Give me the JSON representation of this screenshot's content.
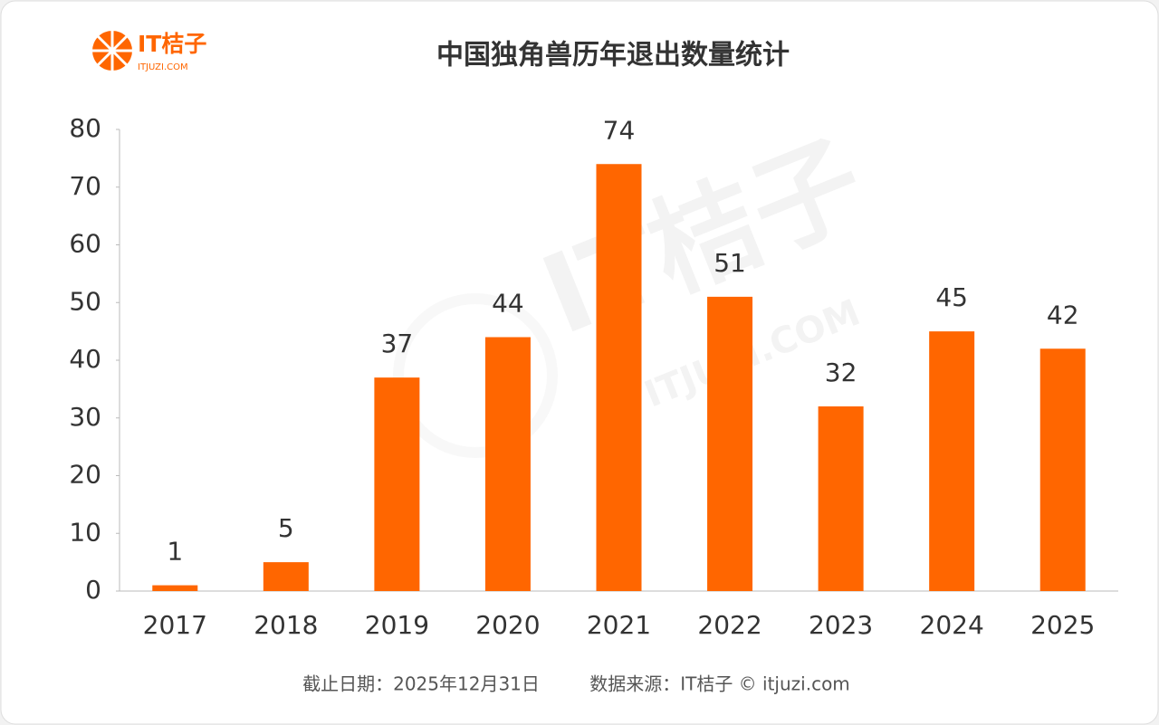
{
  "chart_data": {
    "type": "bar",
    "title": "中国独角兽历年退出数量统计",
    "logo": {
      "name": "IT桔子",
      "site": "ITJUZI.COM"
    },
    "footer": {
      "date": "截止日期：2025年12月31日",
      "source": "数据来源：IT桔子 © itjuzi.com"
    },
    "categories": [
      "2017",
      "2018",
      "2019",
      "2020",
      "2021",
      "2022",
      "2023",
      "2024",
      "2025"
    ],
    "values": [
      1,
      5,
      37,
      44,
      74,
      51,
      32,
      45,
      42
    ],
    "color": "#ff6600",
    "ylim": [
      0,
      80
    ],
    "yticks": [
      0,
      10,
      20,
      30,
      40,
      50,
      60,
      70,
      80
    ],
    "grid": false
  }
}
